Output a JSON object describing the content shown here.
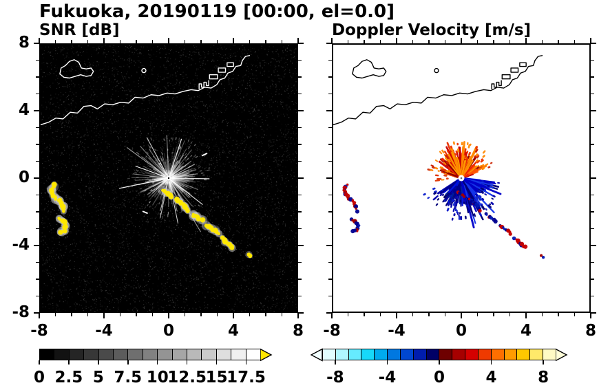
{
  "title": "Fukuoka, 20190119 [00:00, el=0.0]",
  "panels": {
    "snr": {
      "subtitle": "SNR [dB]",
      "bg": "#000000",
      "coast_color": "#ffffff",
      "show_ylabels": true,
      "xtick_labels": [
        "-8",
        "-4",
        "0",
        "4",
        "8"
      ],
      "ytick_labels": [
        "8",
        "4",
        "0",
        "-4",
        "-8"
      ]
    },
    "doppler": {
      "subtitle": "Doppler Velocity [m/s]",
      "bg": "#ffffff",
      "coast_color": "#000000",
      "show_ylabels": false,
      "xtick_labels": [
        "-8",
        "-4",
        "0",
        "4",
        "8"
      ],
      "ytick_labels": []
    }
  },
  "colorbars": {
    "snr": {
      "tick_labels": [
        "0",
        "2.5",
        "5",
        "7.5",
        "10",
        "12.5",
        "15",
        "17.5"
      ],
      "tick_values": [
        0,
        2.5,
        5,
        7.5,
        10,
        12.5,
        15,
        17.5
      ],
      "min": 0,
      "max": 18.75,
      "cell_colors": [
        "#000000",
        "#121212",
        "#252525",
        "#373737",
        "#4a4a4a",
        "#5c5c5c",
        "#6f6f6f",
        "#818181",
        "#949494",
        "#a6a6a6",
        "#b9b9b9",
        "#cbcbcb",
        "#dedede",
        "#f0f0f0",
        "#ffffff"
      ],
      "arrow_right": "#ffe600"
    },
    "doppler": {
      "tick_labels": [
        "-8",
        "-4",
        "0",
        "4",
        "8"
      ],
      "tick_values": [
        -8,
        -4,
        0,
        4,
        8
      ],
      "min": -9,
      "max": 9,
      "cell_colors": [
        "#e2feff",
        "#b0f7ff",
        "#66ebff",
        "#17d9f9",
        "#00abee",
        "#0078e0",
        "#0047d0",
        "#001dae",
        "#000066",
        "#6e0000",
        "#a60000",
        "#d40000",
        "#ef3a00",
        "#ff6f00",
        "#ff9c00",
        "#ffc800",
        "#ffe96a",
        "#fffbc4"
      ],
      "arrow_left": "#f2ffff",
      "arrow_right": "#ffffd9"
    }
  },
  "chart_data": {
    "type": "heatmap",
    "title": "Fukuoka, 20190119 [00:00, el=0.0]",
    "subplots": [
      {
        "name": "SNR",
        "units": "dB",
        "xlim": [
          -8,
          8
        ],
        "ylim": [
          -8,
          8
        ],
        "xticks": [
          -8,
          -4,
          0,
          4,
          8
        ],
        "yticks": [
          -8,
          -4,
          0,
          4,
          8
        ],
        "minor_tick_step": 1,
        "colorbar_range": [
          0,
          18.75
        ],
        "colorbar_ticks": [
          0,
          2.5,
          5,
          7.5,
          10,
          12.5,
          15,
          17.5
        ]
      },
      {
        "name": "Doppler Velocity",
        "units": "m/s",
        "xlim": [
          -8,
          8
        ],
        "ylim": [
          -8,
          8
        ],
        "xticks": [
          -8,
          -4,
          0,
          4,
          8
        ],
        "yticks": [
          -8,
          -4,
          0,
          4,
          8
        ],
        "minor_tick_step": 1,
        "colorbar_range": [
          -9,
          9
        ],
        "colorbar_ticks": [
          -8,
          -4,
          0,
          4,
          8
        ]
      }
    ],
    "radar_center": [
      0,
      0
    ],
    "seed": 20190119,
    "coastline": {
      "main": [
        [
          -8,
          3.2
        ],
        [
          -7.5,
          3.35
        ],
        [
          -7.05,
          3.6
        ],
        [
          -6.6,
          3.55
        ],
        [
          -6.15,
          3.95
        ],
        [
          -5.7,
          3.9
        ],
        [
          -5.3,
          4.3
        ],
        [
          -4.85,
          4.35
        ],
        [
          -4.45,
          4.15
        ],
        [
          -4.0,
          4.45
        ],
        [
          -3.5,
          4.4
        ],
        [
          -3.0,
          4.55
        ],
        [
          -2.5,
          4.5
        ],
        [
          -2.1,
          4.85
        ],
        [
          -1.6,
          4.8
        ],
        [
          -1.1,
          5.0
        ],
        [
          -0.6,
          4.95
        ],
        [
          -0.1,
          5.1
        ],
        [
          0.4,
          5.05
        ],
        [
          0.9,
          5.2
        ],
        [
          1.4,
          5.3
        ],
        [
          1.85,
          5.25
        ],
        [
          2.25,
          5.45
        ],
        [
          2.65,
          5.4
        ],
        [
          3.0,
          5.6
        ],
        [
          3.2,
          5.9
        ],
        [
          3.5,
          6.0
        ],
        [
          3.7,
          6.3
        ],
        [
          4.0,
          6.4
        ],
        [
          4.2,
          6.7
        ],
        [
          4.5,
          6.75
        ],
        [
          4.6,
          7.05
        ]
      ],
      "spur": [
        [
          4.6,
          7.05
        ],
        [
          4.8,
          7.3
        ],
        [
          5.05,
          7.35
        ]
      ],
      "island": [
        [
          -6.55,
          6.05
        ],
        [
          -6.8,
          6.25
        ],
        [
          -6.72,
          6.6
        ],
        [
          -6.45,
          6.75
        ],
        [
          -6.2,
          7.0
        ],
        [
          -5.9,
          7.1
        ],
        [
          -5.62,
          6.95
        ],
        [
          -5.45,
          6.6
        ],
        [
          -5.15,
          6.55
        ],
        [
          -4.85,
          6.6
        ],
        [
          -4.7,
          6.4
        ],
        [
          -4.85,
          6.15
        ],
        [
          -5.15,
          6.1
        ],
        [
          -5.5,
          6.2
        ],
        [
          -5.85,
          6.1
        ],
        [
          -6.2,
          6.0
        ]
      ],
      "islet": [
        -1.55,
        6.45
      ],
      "harbor_comb": [
        [
          1.9,
          5.35
        ],
        [
          1.9,
          5.65
        ],
        [
          2.05,
          5.65
        ],
        [
          2.05,
          5.45
        ],
        [
          2.2,
          5.45
        ],
        [
          2.2,
          5.75
        ],
        [
          2.35,
          5.75
        ],
        [
          2.35,
          5.55
        ],
        [
          2.5,
          5.55
        ],
        [
          2.5,
          5.85
        ]
      ],
      "harbor_rects": [
        [
          [
            2.55,
            5.95
          ],
          [
            3.05,
            5.95
          ],
          [
            3.05,
            6.2
          ],
          [
            2.55,
            6.2
          ]
        ],
        [
          [
            3.1,
            6.35
          ],
          [
            3.55,
            6.35
          ],
          [
            3.55,
            6.6
          ],
          [
            3.1,
            6.6
          ]
        ],
        [
          [
            3.65,
            6.7
          ],
          [
            4.05,
            6.7
          ],
          [
            4.05,
            6.92
          ],
          [
            3.65,
            6.92
          ]
        ]
      ]
    },
    "echo_chains": [
      {
        "pts": [
          [
            -7.15,
            -0.38
          ],
          [
            -7.32,
            -0.7
          ],
          [
            -7.25,
            -1.02
          ],
          [
            -7.03,
            -1.22
          ],
          [
            -6.8,
            -1.36
          ],
          [
            -6.6,
            -1.64
          ],
          [
            -6.54,
            -1.96
          ]
        ]
      },
      {
        "pts": [
          [
            -6.9,
            -2.45
          ],
          [
            -6.6,
            -2.58
          ],
          [
            -6.44,
            -2.86
          ],
          [
            -6.52,
            -3.12
          ],
          [
            -6.76,
            -3.22
          ]
        ]
      },
      {
        "pts": [
          [
            -0.35,
            -0.76
          ],
          [
            -0.07,
            -0.95
          ],
          [
            0.18,
            -1.1
          ]
        ]
      },
      {
        "pts": [
          [
            0.5,
            -1.28
          ],
          [
            0.8,
            -1.46
          ],
          [
            1.05,
            -1.7
          ],
          [
            1.2,
            -1.96
          ]
        ]
      },
      {
        "pts": [
          [
            1.5,
            -2.18
          ],
          [
            1.8,
            -2.36
          ],
          [
            2.1,
            -2.56
          ]
        ]
      },
      {
        "pts": [
          [
            2.38,
            -2.8
          ],
          [
            2.66,
            -3.0
          ],
          [
            2.9,
            -3.16
          ],
          [
            3.1,
            -3.36
          ]
        ]
      },
      {
        "pts": [
          [
            3.35,
            -3.6
          ],
          [
            3.56,
            -3.8
          ],
          [
            3.78,
            -4.0
          ],
          [
            3.96,
            -4.14
          ]
        ]
      },
      {
        "pts": [
          [
            5.0,
            -4.6
          ],
          [
            5.14,
            -4.7
          ]
        ]
      }
    ],
    "snr_render": {
      "noise": {
        "count": 7500,
        "max_alpha": 0.22
      },
      "spoke_groups": [
        {
          "a0": 0,
          "a1": 360,
          "count": 260,
          "s0": 0.08,
          "s1": 0.3,
          "lmin": 0.1,
          "lmax": 1.7,
          "pow": 2.2,
          "w0": 0.8,
          "w1": 1.8,
          "al0": 0.05,
          "al1": 0.4,
          "colors": [
            "#ffffff"
          ]
        },
        {
          "a0": 0,
          "a1": 360,
          "count": 55,
          "s0": 0.08,
          "s1": 0.3,
          "lmin": 0.8,
          "lmax": 2.6,
          "pow": 2,
          "w0": 0.8,
          "w1": 1.4,
          "al0": 0.25,
          "al1": 0.7,
          "colors": [
            "#ffffff"
          ]
        },
        {
          "a0": 0,
          "a1": 360,
          "count": 10,
          "s0": 0.08,
          "s1": 0.2,
          "lmin": 2.0,
          "lmax": 3.8,
          "pow": 1,
          "w0": 1,
          "w1": 1.3,
          "al0": 0.5,
          "al1": 0.95,
          "colors": [
            "#ffffff"
          ]
        },
        {
          "a0": 0,
          "a1": 360,
          "count": 150,
          "s0": 0.9,
          "s1": 2.6,
          "lmin": 0.02,
          "lmax": 0.16,
          "pow": 1,
          "w0": 1,
          "w1": 1.6,
          "al0": 0.1,
          "al1": 0.5,
          "colors": [
            "#ffffff"
          ]
        }
      ],
      "center": {
        "white_r": 3.4,
        "dot_r": 1.2,
        "dot_color": "#000000"
      },
      "chain_style": {
        "halo": "#cccccc",
        "haloR": 5.5,
        "core": "#ffe800",
        "coreR": 3.0
      },
      "dashes": [
        {
          "pts": [
            [
              -1.6,
              -2.0
            ],
            [
              -1.34,
              -2.1
            ]
          ],
          "w": 2,
          "color": "#ffffff"
        },
        {
          "pts": [
            [
              2.1,
              1.35
            ],
            [
              2.38,
              1.48
            ]
          ],
          "w": 2,
          "color": "#ffffff"
        }
      ]
    },
    "doppler_render": {
      "spoke_groups": [
        {
          "a0": 15,
          "a1": 165,
          "count": 170,
          "s0": 0.1,
          "s1": 0.3,
          "lmin": 0.1,
          "lmax": 1.5,
          "pow": 1.6,
          "w0": 2,
          "w1": 3.4,
          "al0": 0.9,
          "al1": 1,
          "colors": [
            "#ff7700",
            "#ff5500",
            "#ee2200",
            "#cc0000",
            "#8b0000",
            "#ff9900"
          ]
        },
        {
          "a0": 55,
          "a1": 130,
          "count": 45,
          "s0": 0.1,
          "s1": 0.2,
          "lmin": 0.9,
          "lmax": 2.2,
          "pow": 2,
          "w0": 2,
          "w1": 3,
          "al0": 0.95,
          "al1": 1,
          "colors": [
            "#ff8800",
            "#e83000",
            "#c80000",
            "#ff9900"
          ]
        },
        {
          "a0": 15,
          "a1": 170,
          "count": 55,
          "s0": 1.2,
          "s1": 2.1,
          "lmin": 0.03,
          "lmax": 0.15,
          "pow": 1,
          "w0": 2,
          "w1": 3,
          "al0": 0.9,
          "al1": 1,
          "colors": [
            "#ff8800",
            "#ee3300",
            "#cc2200"
          ]
        },
        {
          "a0": 210,
          "a1": 350,
          "count": 190,
          "s0": 0.1,
          "s1": 0.3,
          "lmin": 0.1,
          "lmax": 1.6,
          "pow": 1.6,
          "w0": 2,
          "w1": 3.4,
          "al0": 0.9,
          "al1": 1,
          "colors": [
            "#000066",
            "#0000aa",
            "#0011dd",
            "#002299",
            "#000088"
          ]
        },
        {
          "a0": 280,
          "a1": 355,
          "count": 55,
          "s0": 0.1,
          "s1": 0.2,
          "lmin": 1.0,
          "lmax": 3.0,
          "pow": 2.2,
          "w0": 2,
          "w1": 3,
          "al0": 0.95,
          "al1": 1,
          "colors": [
            "#000077",
            "#0000c8",
            "#1535e8"
          ]
        },
        {
          "a0": 200,
          "a1": 355,
          "count": 70,
          "s0": 1.3,
          "s1": 2.5,
          "lmin": 0.03,
          "lmax": 0.15,
          "pow": 1,
          "w0": 2,
          "w1": 3,
          "al0": 0.9,
          "al1": 1,
          "colors": [
            "#0000aa",
            "#0a1ecc",
            "#000077"
          ]
        },
        {
          "a0": 150,
          "a1": 190,
          "count": 12,
          "s0": 0.8,
          "s1": 1.6,
          "lmin": 0.04,
          "lmax": 0.25,
          "pow": 1,
          "w0": 2,
          "w1": 2.8,
          "al0": 0.9,
          "al1": 1,
          "colors": [
            "#ff8800",
            "#dd3300"
          ]
        }
      ],
      "center": {
        "white_r": 4.5,
        "dot_r": 1.3,
        "dot_color": "#666666"
      },
      "chain_style": {
        "coreR": 2.5,
        "colors": [
          "#c40000",
          "#c40000",
          "#a00000",
          "#000090",
          "#0018b4"
        ]
      },
      "dashes": []
    }
  }
}
